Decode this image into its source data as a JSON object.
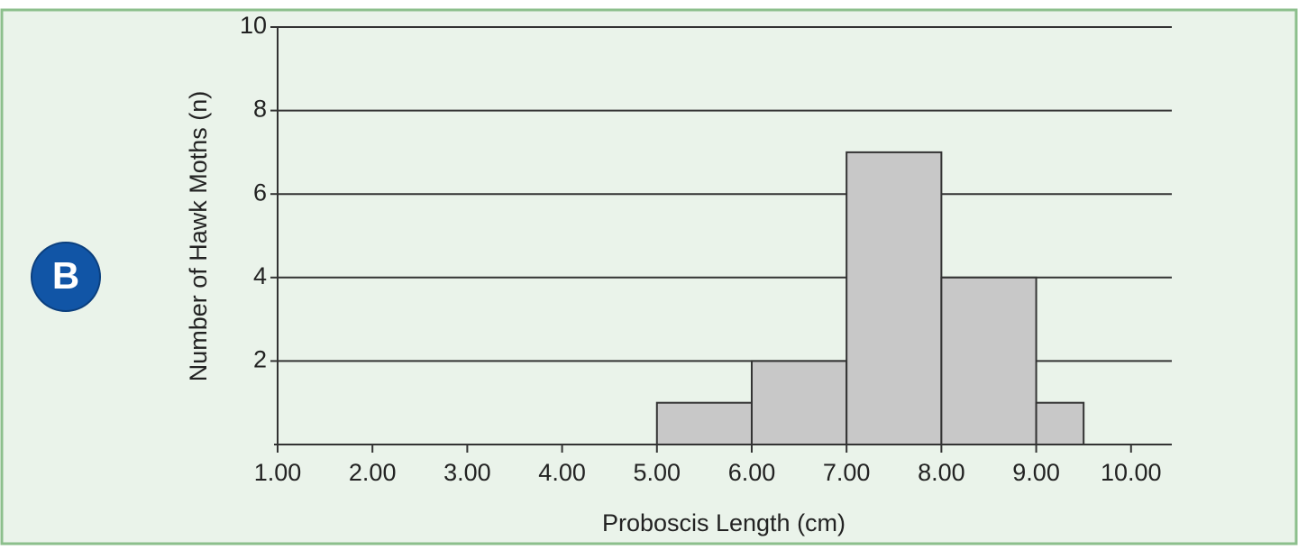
{
  "chart_data": {
    "type": "histogram",
    "panel_label": "B",
    "x_label": "Proboscis Length (cm)",
    "y_label": "Number of Hawk Moths (n)",
    "bins": [
      5,
      6,
      7,
      8,
      9,
      9.5
    ],
    "values": [
      1,
      2,
      7,
      4,
      1
    ],
    "color": "#c8c8c8",
    "xlim": [
      1,
      10.43
    ],
    "ylim": [
      0,
      10
    ],
    "xticks": [
      {
        "value": 1,
        "label": "1.00"
      },
      {
        "value": 2,
        "label": "2.00"
      },
      {
        "value": 3,
        "label": "3.00"
      },
      {
        "value": 4,
        "label": "4.00"
      },
      {
        "value": 5,
        "label": "5.00"
      },
      {
        "value": 6,
        "label": "6.00"
      },
      {
        "value": 7,
        "label": "7.00"
      },
      {
        "value": 8,
        "label": "8.00"
      },
      {
        "value": 9,
        "label": "9.00"
      },
      {
        "value": 10,
        "label": "10.00"
      }
    ],
    "yticks": [
      2,
      4,
      6,
      8,
      10
    ],
    "grid": true
  }
}
